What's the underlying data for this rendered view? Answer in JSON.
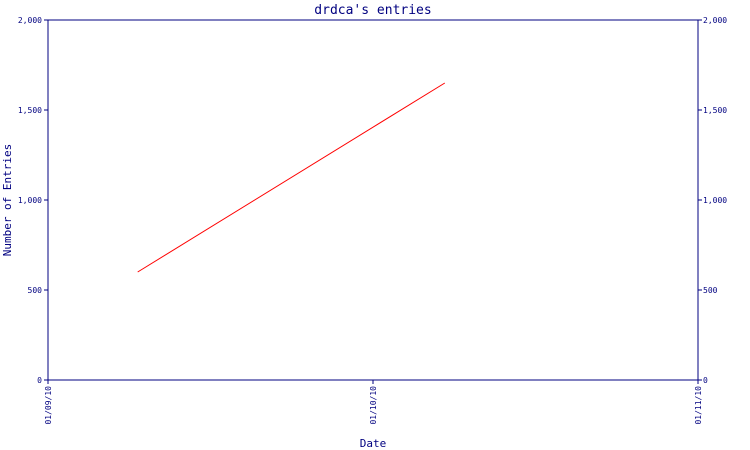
{
  "chart_data": {
    "type": "line",
    "title": "drdca's entries",
    "xlabel": "Date",
    "ylabel": "Number of Entries",
    "x_ticks": [
      "01/09/10",
      "01/10/10",
      "01/11/10"
    ],
    "y_ticks": [
      "0",
      "500",
      "1,000",
      "1,500",
      "2,000"
    ],
    "y_tick_values": [
      0,
      500,
      1000,
      1500,
      2000
    ],
    "ylim": [
      0,
      2000
    ],
    "xlim": [
      "01/09/10",
      "01/11/10"
    ],
    "right_axis": true,
    "grid": false,
    "series": [
      {
        "x": [
          "01/09/10 ~",
          "01/10/10 ~"
        ],
        "x_positions": [
          0.276,
          1.221
        ],
        "values": [
          600,
          1650
        ]
      }
    ],
    "colors": {
      "axis": "#000080",
      "text": "#000080",
      "line": "#ff0000"
    }
  }
}
